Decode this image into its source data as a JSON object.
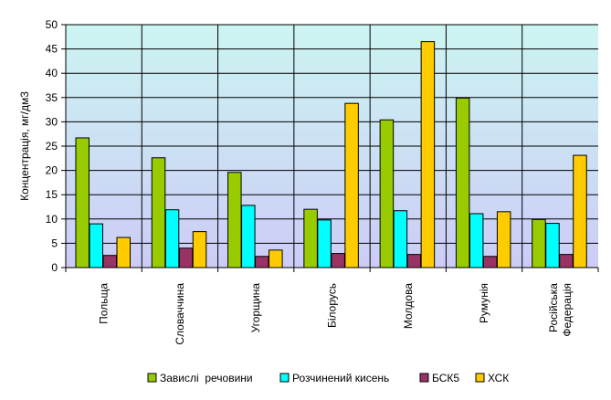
{
  "chart_data": {
    "type": "bar",
    "ylabel": "Концентрація, мг/дм3",
    "ylim": [
      0,
      50
    ],
    "yticks": [
      0,
      5,
      10,
      15,
      20,
      25,
      30,
      35,
      40,
      45,
      50
    ],
    "grid": "horizontal",
    "legend_position": "bottom",
    "categories": [
      [
        "Польща"
      ],
      [
        "Словаччина"
      ],
      [
        "Угорщина"
      ],
      [
        "Білорусь"
      ],
      [
        "Молдова"
      ],
      [
        "Румунія"
      ],
      [
        "Російська",
        "Федерація"
      ]
    ],
    "series": [
      {
        "name": "Завислі  речовини",
        "color": "#99cc00",
        "values": [
          26.7,
          22.6,
          19.6,
          12.0,
          30.4,
          34.9,
          9.9
        ]
      },
      {
        "name": "Розчинений кисень",
        "color": "#00ffff",
        "values": [
          9.0,
          11.9,
          12.8,
          9.8,
          11.7,
          11.1,
          9.1
        ]
      },
      {
        "name": "БСК5",
        "color": "#993366",
        "values": [
          2.5,
          4.0,
          2.3,
          2.9,
          2.7,
          2.3,
          2.7
        ]
      },
      {
        "name": "ХСК",
        "color": "#ffcc00",
        "values": [
          6.2,
          7.4,
          3.6,
          33.8,
          46.5,
          11.5,
          23.1
        ]
      }
    ]
  }
}
